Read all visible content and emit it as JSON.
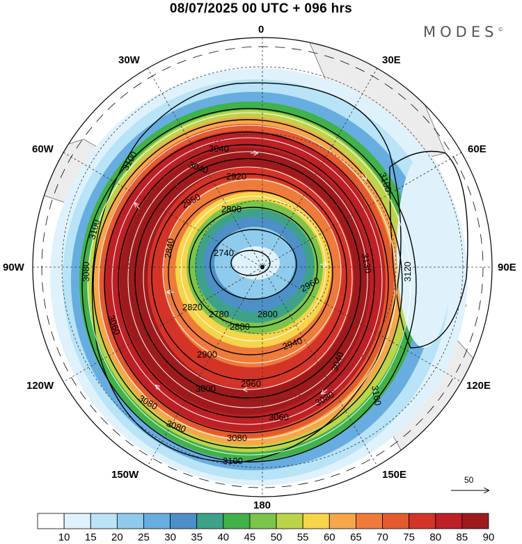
{
  "header": {
    "title": "08/07/2025  00 UTC  + 096 hrs",
    "brand": "MODES",
    "brand_mark": "©"
  },
  "longitude_labels": {
    "top": "0",
    "upper_left": "30W",
    "upper_right": "30E",
    "left_upper": "60W",
    "right_upper": "60E",
    "left": "90W",
    "right": "90E",
    "left_lower": "120W",
    "right_lower": "120E",
    "bottom_left": "150W",
    "bottom_right": "150E",
    "bottom": "180"
  },
  "contour_labels": [
    "3040",
    "3100",
    "3040",
    "2920",
    "2950",
    "2800",
    "2740",
    "3100",
    "3080",
    "2840",
    "2820",
    "2780",
    "2800",
    "2880",
    "2940",
    "2900",
    "3060",
    "3000",
    "2960",
    "3040",
    "3080",
    "3080",
    "3080",
    "3060",
    "3080",
    "3100",
    "3100",
    "3120",
    "3130",
    "2960"
  ],
  "wind_reference": {
    "value": "50"
  },
  "colorbar": {
    "ticks": [
      "10",
      "15",
      "20",
      "25",
      "30",
      "35",
      "40",
      "45",
      "50",
      "55",
      "60",
      "65",
      "70",
      "75",
      "80",
      "85",
      "90"
    ],
    "colors": [
      "#ffffff",
      "#dff2fc",
      "#b9e3f7",
      "#8fcbec",
      "#67ade0",
      "#4d90c8",
      "#3ea28a",
      "#41b14a",
      "#7cc44a",
      "#bcd449",
      "#f7d54a",
      "#f6a74a",
      "#ef7b3a",
      "#e35a30",
      "#d43428",
      "#bd2025",
      "#9f1a1c"
    ]
  },
  "map_colors": {
    "land": "#ececec",
    "coast": "#555555"
  }
}
